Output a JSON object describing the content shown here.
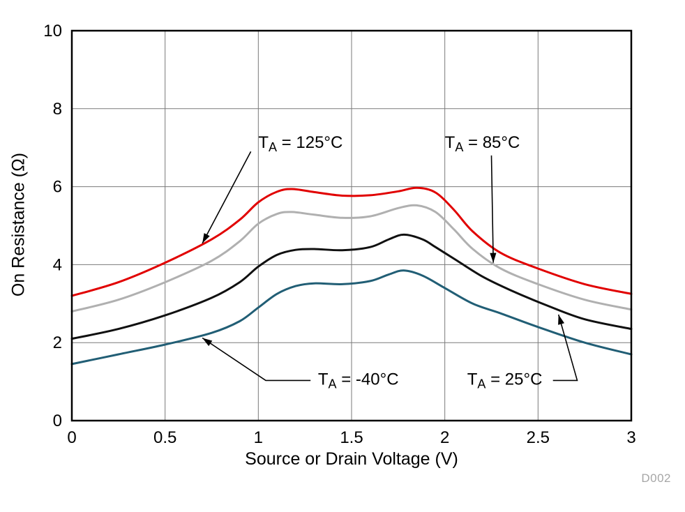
{
  "chart_data": {
    "type": "line",
    "title": "",
    "xlabel": "Source or Drain Voltage (V)",
    "ylabel": "On Resistance (Ω)",
    "watermark": "D002",
    "xlim": [
      0,
      3
    ],
    "ylim": [
      0,
      10
    ],
    "xticks": [
      0,
      0.5,
      1,
      1.5,
      2,
      2.5,
      3
    ],
    "xtick_labels": [
      "0",
      "0.5",
      "1",
      "1.5",
      "2",
      "2.5",
      "3"
    ],
    "yticks": [
      0,
      2,
      4,
      6,
      8,
      10
    ],
    "ytick_labels": [
      "0",
      "2",
      "4",
      "6",
      "8",
      "10"
    ],
    "grid": true,
    "legend_position": "inline-annotations",
    "series": [
      {
        "id": "125c",
        "name": "TA = 125°C",
        "color": "#e10000",
        "points": [
          [
            0,
            3.2
          ],
          [
            0.25,
            3.55
          ],
          [
            0.5,
            4.05
          ],
          [
            0.75,
            4.65
          ],
          [
            0.9,
            5.15
          ],
          [
            1.0,
            5.6
          ],
          [
            1.1,
            5.87
          ],
          [
            1.18,
            5.94
          ],
          [
            1.3,
            5.86
          ],
          [
            1.45,
            5.77
          ],
          [
            1.6,
            5.78
          ],
          [
            1.75,
            5.88
          ],
          [
            1.85,
            5.97
          ],
          [
            1.95,
            5.85
          ],
          [
            2.05,
            5.4
          ],
          [
            2.15,
            4.85
          ],
          [
            2.3,
            4.3
          ],
          [
            2.5,
            3.9
          ],
          [
            2.75,
            3.5
          ],
          [
            3,
            3.25
          ]
        ]
      },
      {
        "id": "85c",
        "name": "TA = 85°C",
        "color": "#b0b0b0",
        "points": [
          [
            0,
            2.8
          ],
          [
            0.25,
            3.1
          ],
          [
            0.5,
            3.55
          ],
          [
            0.75,
            4.1
          ],
          [
            0.9,
            4.6
          ],
          [
            1.0,
            5.05
          ],
          [
            1.1,
            5.3
          ],
          [
            1.18,
            5.35
          ],
          [
            1.3,
            5.28
          ],
          [
            1.45,
            5.2
          ],
          [
            1.6,
            5.24
          ],
          [
            1.75,
            5.45
          ],
          [
            1.85,
            5.52
          ],
          [
            1.95,
            5.35
          ],
          [
            2.05,
            4.9
          ],
          [
            2.15,
            4.4
          ],
          [
            2.3,
            3.9
          ],
          [
            2.5,
            3.5
          ],
          [
            2.75,
            3.1
          ],
          [
            3,
            2.85
          ]
        ]
      },
      {
        "id": "25c",
        "name": "TA = 25°C",
        "color": "#101010",
        "points": [
          [
            0,
            2.1
          ],
          [
            0.25,
            2.35
          ],
          [
            0.5,
            2.7
          ],
          [
            0.75,
            3.15
          ],
          [
            0.9,
            3.55
          ],
          [
            1.0,
            3.95
          ],
          [
            1.1,
            4.25
          ],
          [
            1.2,
            4.38
          ],
          [
            1.3,
            4.4
          ],
          [
            1.45,
            4.37
          ],
          [
            1.6,
            4.45
          ],
          [
            1.7,
            4.65
          ],
          [
            1.78,
            4.77
          ],
          [
            1.88,
            4.65
          ],
          [
            1.95,
            4.45
          ],
          [
            2.05,
            4.15
          ],
          [
            2.2,
            3.7
          ],
          [
            2.35,
            3.35
          ],
          [
            2.55,
            2.95
          ],
          [
            2.75,
            2.6
          ],
          [
            3,
            2.35
          ]
        ]
      },
      {
        "id": "minus40c",
        "name": "TA = -40°C",
        "color": "#215e75",
        "points": [
          [
            0,
            1.45
          ],
          [
            0.25,
            1.7
          ],
          [
            0.5,
            1.95
          ],
          [
            0.75,
            2.25
          ],
          [
            0.9,
            2.55
          ],
          [
            1.0,
            2.9
          ],
          [
            1.1,
            3.25
          ],
          [
            1.2,
            3.45
          ],
          [
            1.3,
            3.52
          ],
          [
            1.45,
            3.5
          ],
          [
            1.6,
            3.58
          ],
          [
            1.7,
            3.75
          ],
          [
            1.78,
            3.85
          ],
          [
            1.88,
            3.72
          ],
          [
            2.0,
            3.4
          ],
          [
            2.15,
            3.0
          ],
          [
            2.3,
            2.75
          ],
          [
            2.5,
            2.4
          ],
          [
            2.75,
            2.0
          ],
          [
            3,
            1.7
          ]
        ]
      }
    ],
    "annotations": [
      {
        "id": "125c",
        "pre": "T",
        "sub": "A",
        "post": " = 125°C",
        "x": 1.0,
        "y": 7.1,
        "arrow": [
          [
            0.96,
            6.9
          ],
          [
            0.7,
            4.55
          ]
        ]
      },
      {
        "id": "85c",
        "pre": "T",
        "sub": "A",
        "post": " = 85°C",
        "x": 2.0,
        "y": 7.1,
        "arrow": [
          [
            2.25,
            6.8
          ],
          [
            2.26,
            4.05
          ]
        ]
      },
      {
        "id": "minus40c",
        "pre": "T",
        "sub": "A",
        "post": " = -40°C",
        "x": 1.32,
        "y": 1.03,
        "arrow": [
          [
            1.28,
            1.03
          ],
          [
            1.04,
            1.03
          ],
          [
            0.7,
            2.12
          ]
        ]
      },
      {
        "id": "25c",
        "pre": "T",
        "sub": "A",
        "post": " = 25°C",
        "x": 2.12,
        "y": 1.03,
        "arrow": [
          [
            2.58,
            1.03
          ],
          [
            2.71,
            1.03
          ],
          [
            2.61,
            2.72
          ]
        ]
      }
    ]
  }
}
